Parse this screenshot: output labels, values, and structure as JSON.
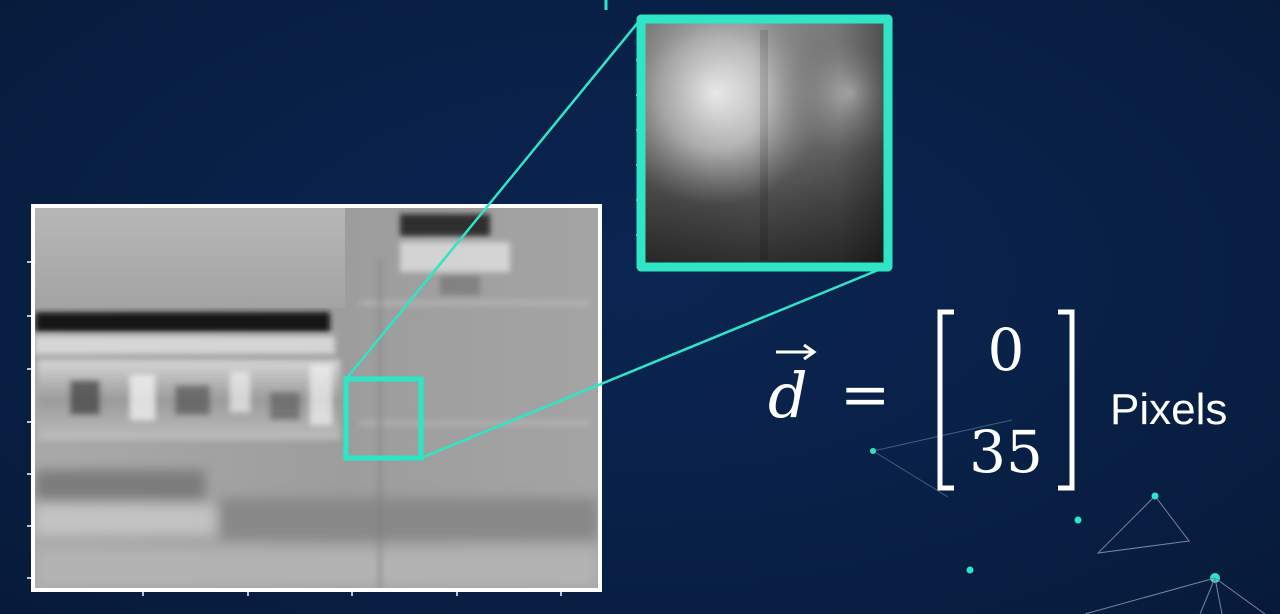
{
  "figure": {
    "main_image": "grayscale-filtered-image",
    "zoom_image": "grayscale-zoomed-patch",
    "highlight_color": "#2ee6c6",
    "background_color": "#092046"
  },
  "equation": {
    "vector_symbol": "d",
    "equals": "=",
    "component_1": "0",
    "component_2": "35",
    "unit": "Pixels"
  }
}
